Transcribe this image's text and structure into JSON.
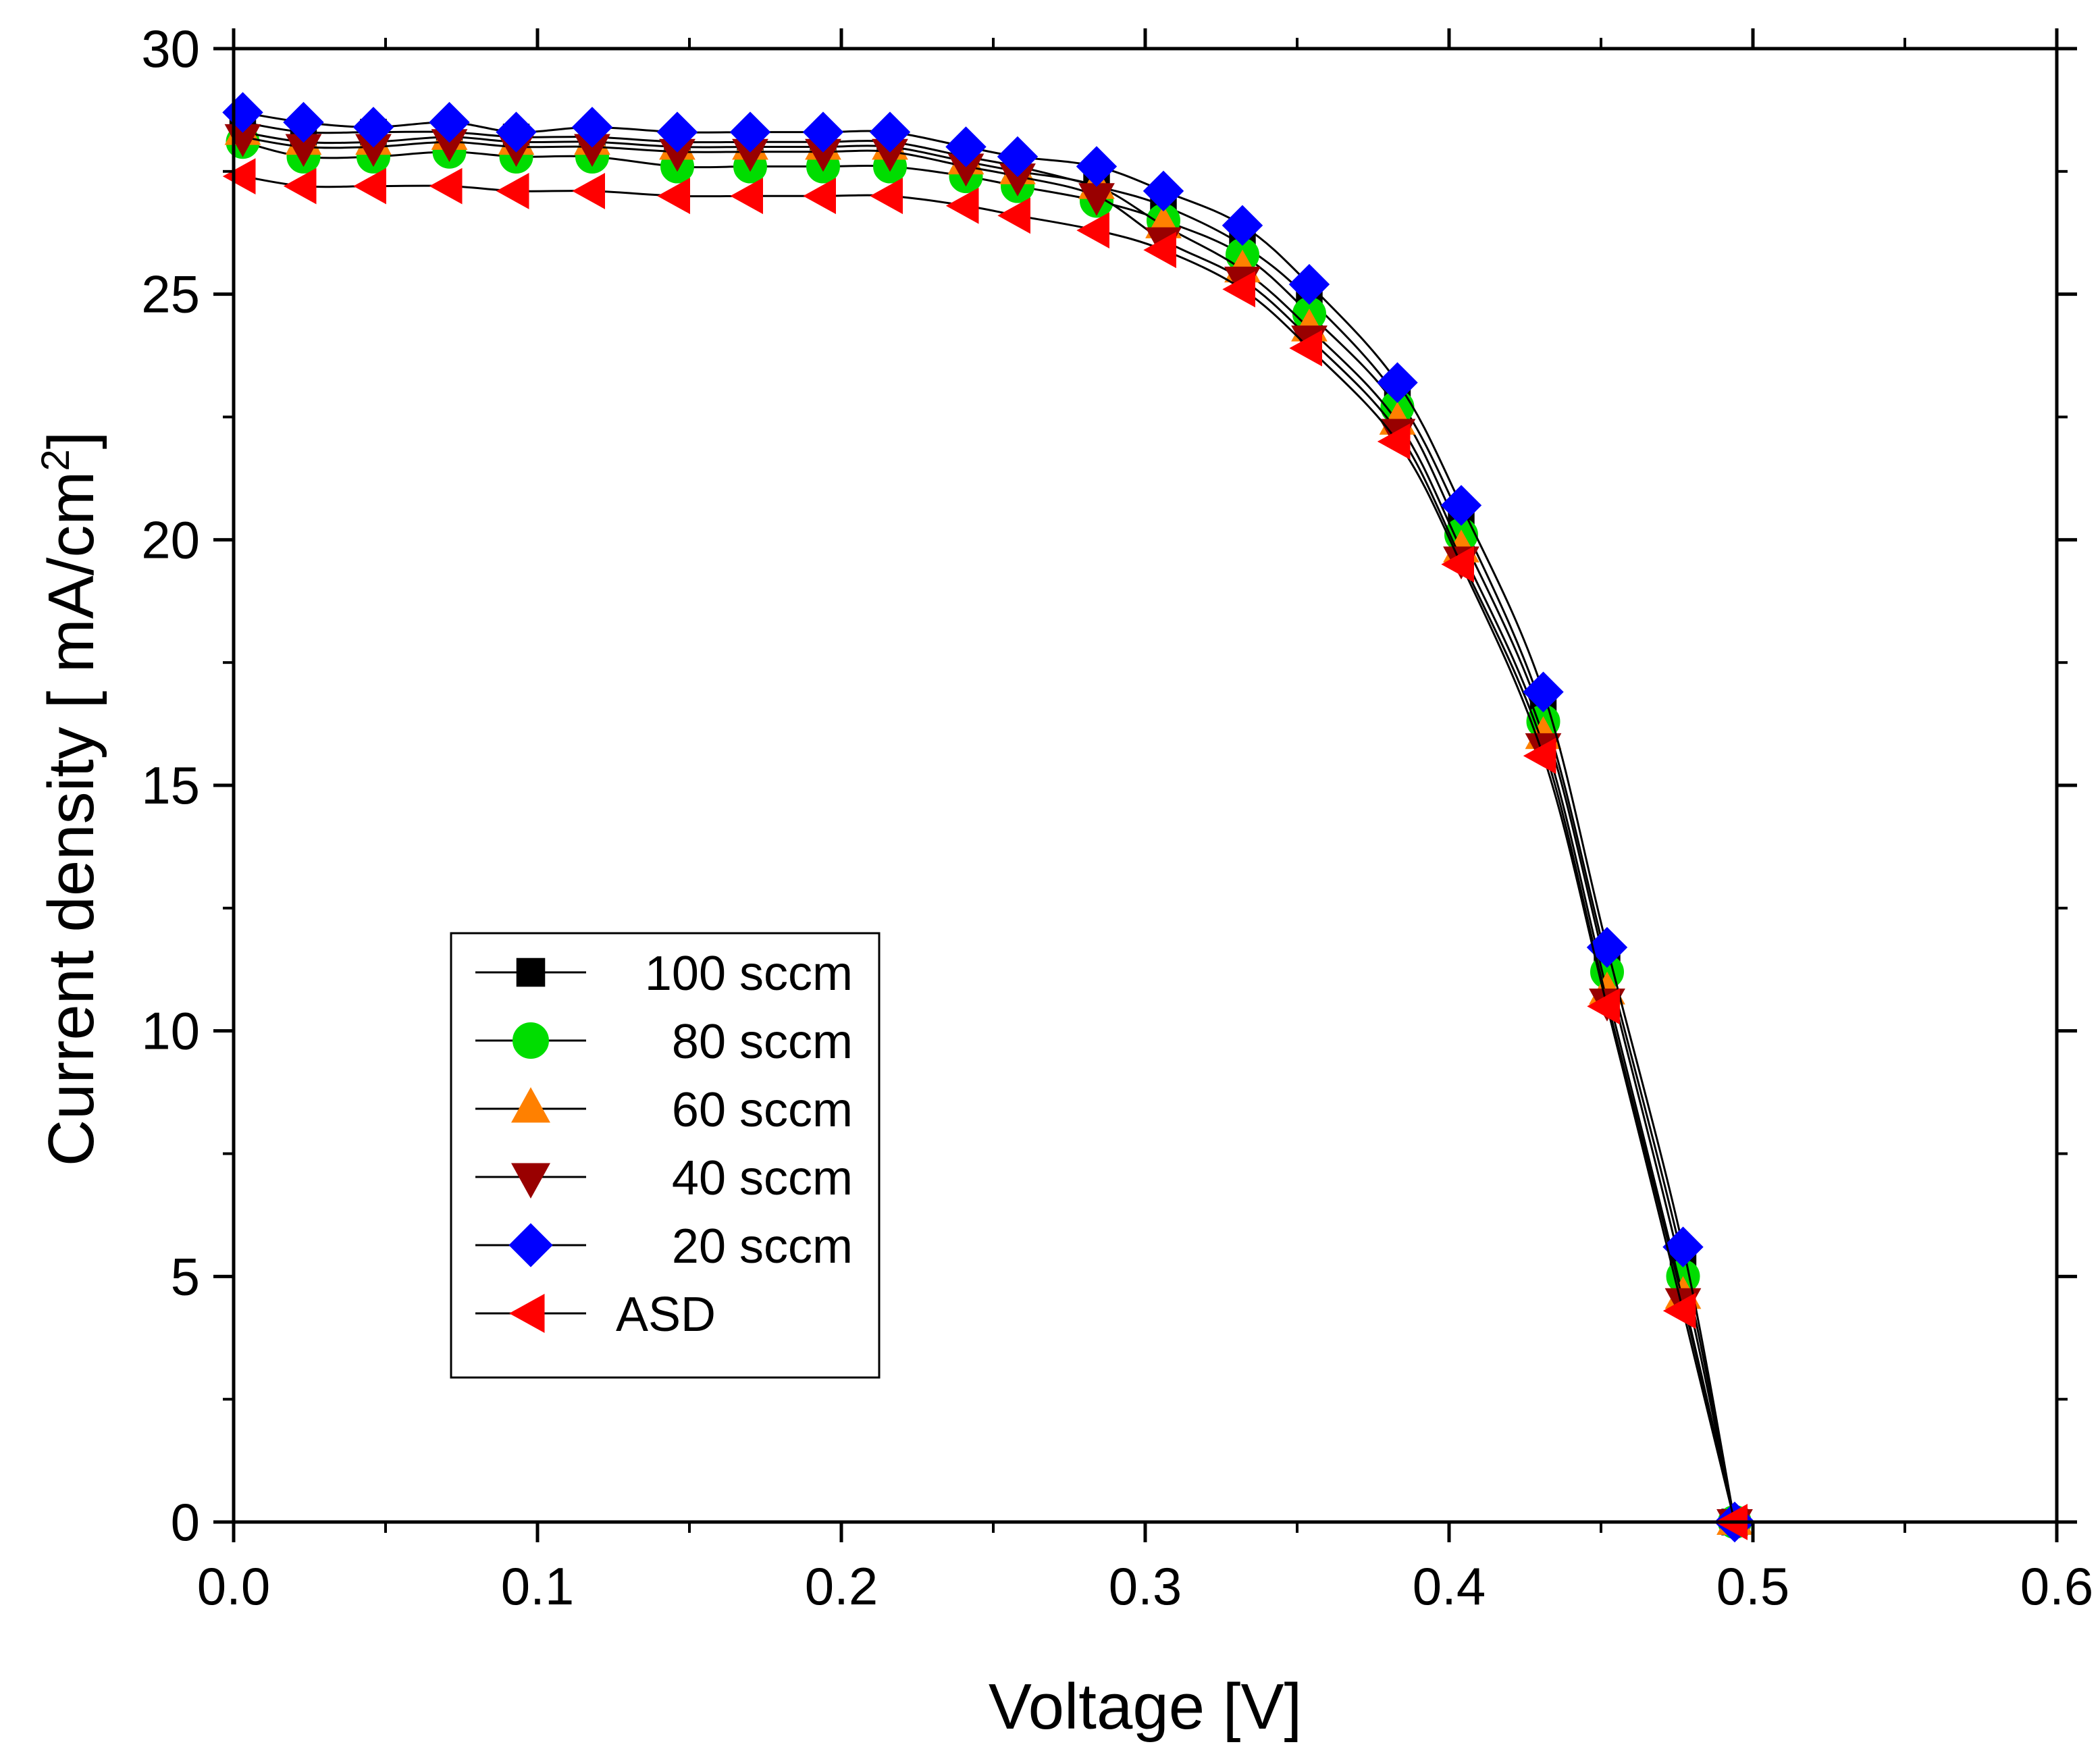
{
  "chart_data": {
    "type": "line",
    "title": "",
    "xlabel": "Voltage [V]",
    "ylabel": "Current density [ mA/cm",
    "ylabel_sup": "2",
    "ylabel_close": "]",
    "xlim": [
      0.0,
      0.6
    ],
    "ylim": [
      0,
      30
    ],
    "xticks": [
      "0.0",
      "0.1",
      "0.2",
      "0.3",
      "0.4",
      "0.5",
      "0.6"
    ],
    "yticks": [
      "0",
      "5",
      "10",
      "15",
      "20",
      "25",
      "30"
    ],
    "grid": false,
    "legend_position": "center-left",
    "x": [
      0.003,
      0.023,
      0.046,
      0.071,
      0.093,
      0.118,
      0.146,
      0.17,
      0.194,
      0.216,
      0.241,
      0.258,
      0.284,
      0.306,
      0.332,
      0.354,
      0.383,
      0.404,
      0.431,
      0.452,
      0.477,
      0.494
    ],
    "series": [
      {
        "name": "100 sccm",
        "marker": "square",
        "color": "#000000",
        "values": [
          28.5,
          28.3,
          28.3,
          28.3,
          28.2,
          28.2,
          28.1,
          28.1,
          28.1,
          28.1,
          27.8,
          27.6,
          27.2,
          26.8,
          26.0,
          24.9,
          22.9,
          20.4,
          16.5,
          11.4,
          5.3,
          0.0
        ]
      },
      {
        "name": "80 sccm",
        "marker": "circle",
        "color": "#00dd00",
        "values": [
          28.1,
          27.8,
          27.8,
          27.9,
          27.8,
          27.8,
          27.6,
          27.6,
          27.6,
          27.6,
          27.4,
          27.2,
          26.9,
          26.5,
          25.8,
          24.6,
          22.7,
          20.1,
          16.3,
          11.2,
          5.0,
          0.0
        ]
      },
      {
        "name": "60 sccm",
        "marker": "triangle-up",
        "color": "#ff8000",
        "values": [
          28.3,
          28.1,
          28.1,
          28.2,
          28.1,
          28.1,
          28.0,
          28.0,
          28.0,
          28.0,
          27.7,
          27.5,
          27.2,
          26.4,
          25.5,
          24.3,
          22.4,
          19.8,
          16.0,
          10.8,
          4.6,
          0.0
        ]
      },
      {
        "name": "40 sccm",
        "marker": "triangle-down",
        "color": "#990000",
        "values": [
          28.2,
          28.0,
          28.0,
          28.1,
          28.0,
          28.0,
          27.9,
          27.9,
          27.9,
          27.9,
          27.6,
          27.4,
          27.0,
          26.1,
          25.3,
          24.1,
          22.2,
          19.6,
          15.8,
          10.6,
          4.5,
          0.0
        ]
      },
      {
        "name": "20 sccm",
        "marker": "diamond",
        "color": "#0000ff",
        "values": [
          28.7,
          28.5,
          28.4,
          28.5,
          28.3,
          28.4,
          28.3,
          28.3,
          28.3,
          28.3,
          28.0,
          27.8,
          27.6,
          27.1,
          26.4,
          25.2,
          23.2,
          20.7,
          16.9,
          11.7,
          5.6,
          0.0
        ]
      },
      {
        "name": "ASD",
        "marker": "triangle-left",
        "color": "#ff0000",
        "values": [
          27.4,
          27.2,
          27.2,
          27.2,
          27.1,
          27.1,
          27.0,
          27.0,
          27.0,
          27.0,
          26.8,
          26.6,
          26.3,
          25.9,
          25.1,
          23.9,
          22.0,
          19.5,
          15.6,
          10.5,
          4.3,
          0.0
        ]
      }
    ]
  }
}
